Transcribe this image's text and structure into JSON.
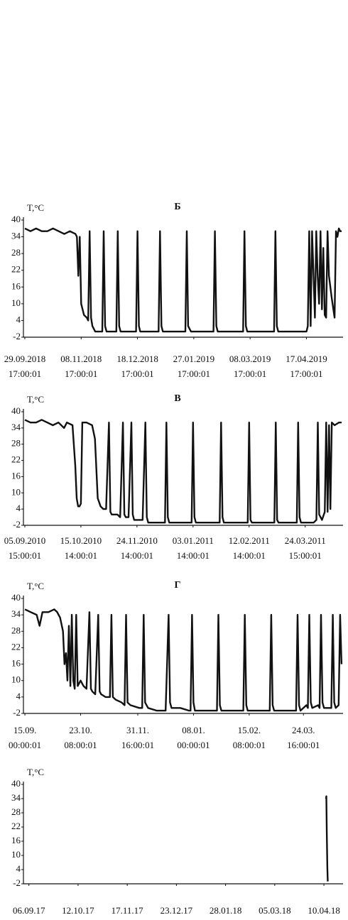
{
  "chart_data": [
    {
      "type": "line",
      "title": "Б",
      "y_label": "T,°C",
      "color": "#111111",
      "xlim": [
        -1,
        226
      ],
      "ylim": [
        -2,
        40
      ],
      "yticks": [
        40,
        34,
        28,
        22,
        16,
        10,
        4,
        -2
      ],
      "xticks": [
        {
          "value": 0,
          "label": "29.09.2018\n17:00:01"
        },
        {
          "value": 40,
          "label": "08.11.2018\n17:00:01"
        },
        {
          "value": 80,
          "label": "18.12.2018\n17:00:01"
        },
        {
          "value": 120,
          "label": "27.01.2019\n17:00:01"
        },
        {
          "value": 160,
          "label": "08.03.2019\n17:00:01"
        },
        {
          "value": 200,
          "label": "17.04.2019\n17:00:01"
        }
      ],
      "x": [
        0,
        4,
        8,
        12,
        16,
        20,
        24,
        28,
        32,
        36,
        37,
        38,
        39,
        40,
        42,
        44,
        45,
        46,
        47,
        48,
        50,
        54,
        55,
        56,
        57,
        58,
        62,
        65,
        66,
        67,
        68,
        70,
        76,
        79,
        80,
        81,
        82,
        86,
        94,
        95,
        96,
        97,
        98,
        104,
        113,
        114,
        115,
        116,
        118,
        126,
        134,
        135,
        136,
        137,
        140,
        148,
        155,
        156,
        157,
        158,
        162,
        170,
        177,
        178,
        179,
        180,
        184,
        194,
        200,
        201,
        202,
        203,
        204,
        206,
        207,
        208,
        209,
        210,
        211,
        212,
        213,
        214,
        215,
        216,
        218,
        220,
        221,
        222,
        223,
        224,
        225
      ],
      "values": [
        37,
        36,
        37,
        36,
        36,
        37,
        36,
        35,
        36,
        35,
        34,
        20,
        34,
        10,
        6,
        5,
        4,
        36,
        5,
        2,
        0,
        0,
        0,
        36,
        2,
        0,
        0,
        0,
        36,
        2,
        0,
        0,
        0,
        0,
        36,
        2,
        0,
        0,
        0,
        0,
        36,
        2,
        0,
        0,
        0,
        0,
        36,
        2,
        0,
        0,
        0,
        36,
        2,
        0,
        0,
        0,
        0,
        36,
        2,
        0,
        0,
        0,
        0,
        36,
        2,
        0,
        0,
        0,
        0,
        2,
        36,
        2,
        36,
        5,
        36,
        20,
        10,
        36,
        8,
        30,
        6,
        5,
        36,
        20,
        12,
        5,
        36,
        34,
        37,
        36,
        36
      ]
    },
    {
      "type": "line",
      "title": "В",
      "y_label": "T,°C",
      "color": "#111111",
      "xlim": [
        -1,
        227
      ],
      "ylim": [
        -2,
        40
      ],
      "yticks": [
        40,
        34,
        28,
        22,
        16,
        10,
        4,
        -2
      ],
      "xticks": [
        {
          "value": 0,
          "label": "05.09.2010\n15:00:01"
        },
        {
          "value": 40,
          "label": "15.10.2010\n14:00:01"
        },
        {
          "value": 80,
          "label": "24.11.2010\n14:00:01"
        },
        {
          "value": 120,
          "label": "03.01.2011\n14:00:01"
        },
        {
          "value": 160,
          "label": "12.02.2011\n14:00:01"
        },
        {
          "value": 200,
          "label": "24.03.2011\n15:00:01"
        }
      ],
      "x": [
        0,
        4,
        8,
        12,
        16,
        20,
        24,
        28,
        30,
        34,
        36,
        37,
        38,
        39,
        40,
        41,
        44,
        48,
        50,
        52,
        54,
        56,
        58,
        60,
        61,
        62,
        66,
        68,
        70,
        71,
        72,
        74,
        76,
        77,
        78,
        84,
        86,
        87,
        88,
        96,
        100,
        101,
        102,
        103,
        112,
        119,
        120,
        121,
        122,
        130,
        139,
        140,
        141,
        142,
        150,
        159,
        160,
        161,
        162,
        172,
        178,
        179,
        180,
        181,
        192,
        194,
        195,
        196,
        197,
        206,
        208,
        209,
        210,
        212,
        214,
        215,
        216,
        217,
        218,
        219,
        221,
        224,
        226
      ],
      "values": [
        37,
        36,
        36,
        37,
        36,
        35,
        36,
        34,
        36,
        35,
        20,
        8,
        5,
        5,
        6,
        36,
        36,
        35,
        30,
        8,
        5,
        4,
        4,
        36,
        3,
        2,
        2,
        1,
        36,
        2,
        1,
        1,
        36,
        2,
        0,
        0,
        36,
        1,
        -1,
        -1,
        -1,
        36,
        1,
        -1,
        -1,
        -1,
        36,
        1,
        -1,
        -1,
        -1,
        36,
        1,
        -1,
        -1,
        -1,
        36,
        0,
        -1,
        -1,
        -1,
        36,
        0,
        -1,
        -1,
        -1,
        36,
        1,
        -1,
        -1,
        0,
        36,
        2,
        0,
        3,
        36,
        3,
        35,
        4,
        36,
        35,
        36,
        36
      ]
    },
    {
      "type": "line",
      "title": "Г",
      "y_label": "T,°C",
      "color": "#111111",
      "xlim": [
        -1,
        217
      ],
      "ylim": [
        -2,
        40
      ],
      "yticks": [
        40,
        34,
        28,
        22,
        16,
        10,
        4,
        -2
      ],
      "xticks": [
        {
          "value": 0,
          "label": "15.09.\n00:00:01"
        },
        {
          "value": 38,
          "label": "23.10.\n08:00:01"
        },
        {
          "value": 77,
          "label": "31.11.\n16:00:01"
        },
        {
          "value": 115,
          "label": "08.01.\n00:00:01"
        },
        {
          "value": 153,
          "label": "15.02.\n08:00:01"
        },
        {
          "value": 190,
          "label": "24.03.\n16:00:01"
        }
      ],
      "x": [
        0,
        4,
        8,
        10,
        12,
        16,
        20,
        22,
        24,
        26,
        27,
        28,
        29,
        30,
        31,
        32,
        33,
        34,
        35,
        36,
        38,
        40,
        42,
        44,
        45,
        46,
        48,
        50,
        51,
        52,
        55,
        58,
        59,
        60,
        62,
        66,
        68,
        69,
        70,
        72,
        78,
        80,
        81,
        82,
        84,
        90,
        96,
        98,
        99,
        100,
        106,
        112,
        113,
        114,
        115,
        116,
        124,
        131,
        132,
        133,
        134,
        142,
        149,
        150,
        151,
        152,
        160,
        167,
        168,
        169,
        170,
        180,
        185,
        186,
        187,
        188,
        192,
        193,
        194,
        195,
        196,
        200,
        201,
        202,
        203,
        204,
        208,
        209,
        210,
        211,
        212,
        214,
        215,
        216
      ],
      "values": [
        36,
        35,
        34,
        30,
        35,
        35,
        36,
        35,
        33,
        28,
        16,
        20,
        10,
        30,
        8,
        34,
        10,
        7,
        34,
        8,
        10,
        8,
        7,
        35,
        7,
        6,
        5,
        34,
        6,
        5,
        4,
        4,
        34,
        4,
        3,
        2,
        1,
        34,
        2,
        1,
        0,
        0,
        34,
        2,
        0,
        -1,
        -1,
        34,
        2,
        0,
        0,
        -1,
        -1,
        34,
        2,
        -1,
        -1,
        -1,
        34,
        1,
        -1,
        -1,
        -1,
        34,
        1,
        -1,
        -1,
        -1,
        34,
        1,
        -1,
        -1,
        -1,
        34,
        1,
        -1,
        1,
        0,
        34,
        2,
        0,
        1,
        0,
        34,
        2,
        0,
        0,
        0,
        34,
        2,
        0,
        1,
        34,
        16
      ]
    },
    {
      "type": "line",
      "y_label": "T,°C",
      "color": "#111111",
      "xlim": [
        -4,
        230
      ],
      "ylim": [
        -2,
        40
      ],
      "yticks": [
        40,
        34,
        28,
        22,
        16,
        10,
        4,
        -2
      ],
      "xticks": [
        {
          "value": 0,
          "label": "06.09.17"
        },
        {
          "value": 36,
          "label": "12.10.17"
        },
        {
          "value": 72,
          "label": "17.11.17"
        },
        {
          "value": 108,
          "label": "23.12.17"
        },
        {
          "value": 144,
          "label": "28.01.18"
        },
        {
          "value": 180,
          "label": "05.03.18"
        },
        {
          "value": 216,
          "label": "10.04.18"
        }
      ],
      "x": [
        217.5,
        217.8,
        218.1,
        218.5,
        218.8
      ],
      "values": [
        34,
        35,
        20,
        5,
        -1
      ]
    }
  ]
}
